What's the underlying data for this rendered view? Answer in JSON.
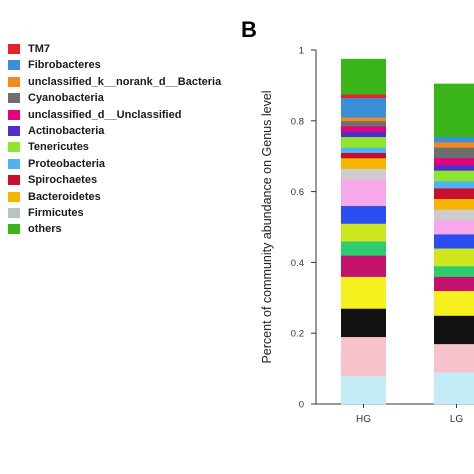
{
  "panel_label": "B",
  "legend": [
    {
      "name": "TM7",
      "color": "#e8222c"
    },
    {
      "name": "Fibrobacteres",
      "color": "#3a8fd9"
    },
    {
      "name": "unclassified_k__norank_d__Bacteria",
      "color": "#f08a1c"
    },
    {
      "name": "Cyanobacteria",
      "color": "#6e6e6e"
    },
    {
      "name": "unclassified_d__Unclassified",
      "color": "#e5007f"
    },
    {
      "name": "Actinobacteria",
      "color": "#4b2fc9"
    },
    {
      "name": "Tenericutes",
      "color": "#8ee62e"
    },
    {
      "name": "Proteobacteria",
      "color": "#4fb3f2"
    },
    {
      "name": "Spirochaetes",
      "color": "#c8102e"
    },
    {
      "name": "Bacteroidetes",
      "color": "#f5b400"
    },
    {
      "name": "Firmicutes",
      "color": "#b8c4c4"
    },
    {
      "name": "others",
      "color": "#39b51a"
    }
  ],
  "chart_data": {
    "type": "bar",
    "stacked": true,
    "ylabel": "Percent of community abundance on Genus level",
    "xlabel": "",
    "ylim": [
      0,
      1
    ],
    "yticks": [
      "0",
      "0.2",
      "0.4",
      "0.6",
      "0.8",
      "1"
    ],
    "categories": [
      "HG",
      "LG"
    ],
    "segment_colors": [
      "#c4ecf7",
      "#f7c2cc",
      "#111111",
      "#f5f01e",
      "#c2126e",
      "#2dcc6e",
      "#cde61e",
      "#2a4ef0",
      "#f7a8ea",
      "#cccccc",
      "#f5b400",
      "#c8102e",
      "#4fb3f2",
      "#8ee62e",
      "#4b2fc9",
      "#e5007f",
      "#6e6e6e",
      "#f08a1c",
      "#3a8fd9",
      "#e8222c",
      "#39b51a"
    ],
    "series": [
      {
        "values": [
          0.08,
          0.09
        ]
      },
      {
        "values": [
          0.11,
          0.08
        ]
      },
      {
        "values": [
          0.08,
          0.08
        ]
      },
      {
        "values": [
          0.09,
          0.07
        ]
      },
      {
        "values": [
          0.06,
          0.04
        ]
      },
      {
        "values": [
          0.04,
          0.03
        ]
      },
      {
        "values": [
          0.05,
          0.05
        ]
      },
      {
        "values": [
          0.05,
          0.04
        ]
      },
      {
        "values": [
          0.075,
          0.04
        ]
      },
      {
        "values": [
          0.03,
          0.03
        ]
      },
      {
        "values": [
          0.03,
          0.03
        ]
      },
      {
        "values": [
          0.015,
          0.03
        ]
      },
      {
        "values": [
          0.015,
          0.02
        ]
      },
      {
        "values": [
          0.03,
          0.03
        ]
      },
      {
        "values": [
          0.015,
          0.015
        ]
      },
      {
        "values": [
          0.015,
          0.02
        ]
      },
      {
        "values": [
          0.015,
          0.03
        ]
      },
      {
        "values": [
          0.01,
          0.015
        ]
      },
      {
        "values": [
          0.055,
          0.015
        ]
      },
      {
        "values": [
          0.01,
          0.0
        ]
      },
      {
        "values": [
          0.1,
          0.15
        ]
      }
    ]
  }
}
